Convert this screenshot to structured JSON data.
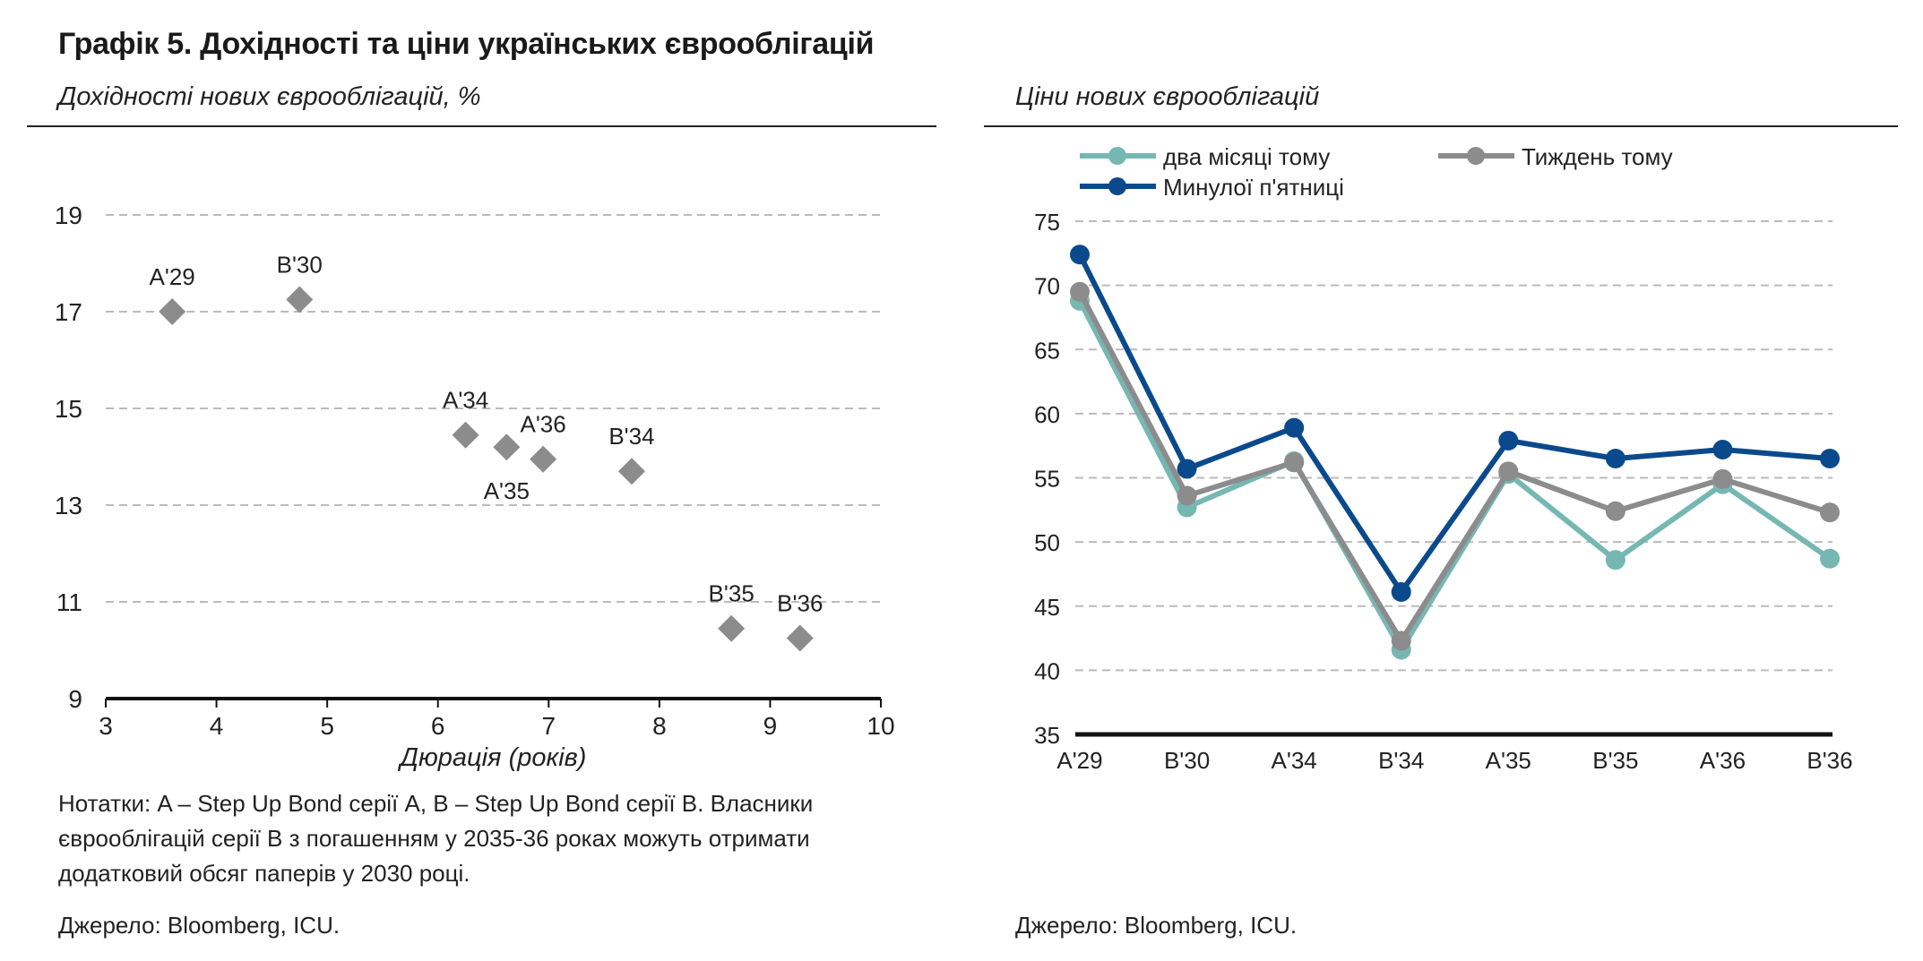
{
  "title": "Графік 5. Дохідності та ціни українських єврооблігацій",
  "left_subtitle": "Дохідності нових єврооблігацій, %",
  "right_subtitle": "Ціни нових єврооблігацій",
  "notes": "Нотатки: A – Step Up Bond серії A, B – Step Up Bond серії B. Власники єврооблігацій серії B з погашенням у 2035-36 роках можуть отримати додатковий обсяг паперів у 2030 році.",
  "left_source": "Джерело: Bloomberg, ICU.",
  "right_source": "Джерело: Bloomberg, ICU.",
  "chart_data": [
    {
      "type": "scatter",
      "title": "Дохідності нових єврооблігацій, %",
      "xlabel": "Дюрація (років)",
      "ylabel": "",
      "xlim": [
        3,
        10
      ],
      "ylim": [
        9,
        19
      ],
      "xticks": [
        3,
        4,
        5,
        6,
        7,
        8,
        9,
        10
      ],
      "yticks": [
        9,
        11,
        13,
        15,
        17,
        19
      ],
      "grid": true,
      "color": "#8c8c8c",
      "points": [
        {
          "label": "A'29",
          "x": 3.6,
          "y": 17.0,
          "label_pos": "above"
        },
        {
          "label": "B'30",
          "x": 4.75,
          "y": 17.25,
          "label_pos": "above"
        },
        {
          "label": "A'34",
          "x": 6.25,
          "y": 14.45,
          "label_pos": "above"
        },
        {
          "label": "A'35",
          "x": 6.62,
          "y": 14.2,
          "label_pos": "below"
        },
        {
          "label": "A'36",
          "x": 6.95,
          "y": 13.95,
          "label_pos": "above"
        },
        {
          "label": "B'34",
          "x": 7.75,
          "y": 13.7,
          "label_pos": "above"
        },
        {
          "label": "B'35",
          "x": 8.65,
          "y": 10.45,
          "label_pos": "above"
        },
        {
          "label": "B'36",
          "x": 9.27,
          "y": 10.25,
          "label_pos": "above"
        }
      ]
    },
    {
      "type": "line",
      "title": "Ціни нових єврооблігацій",
      "xlabel": "",
      "ylabel": "",
      "categories": [
        "A'29",
        "B'30",
        "A'34",
        "B'34",
        "A'35",
        "B'35",
        "A'36",
        "B'36"
      ],
      "ylim": [
        35,
        75
      ],
      "yticks": [
        35,
        40,
        45,
        50,
        55,
        60,
        65,
        70,
        75
      ],
      "grid": true,
      "legend_position": "top",
      "series": [
        {
          "name": "два місяці тому",
          "color": "#76b7b2",
          "values": [
            68.8,
            52.7,
            56.3,
            41.6,
            55.3,
            48.6,
            54.5,
            48.7
          ]
        },
        {
          "name": "Тиждень тому",
          "color": "#8c8c8c",
          "values": [
            69.5,
            53.6,
            56.2,
            42.3,
            55.5,
            52.4,
            54.9,
            52.3
          ]
        },
        {
          "name": "Минулої п'ятниці",
          "color": "#0a4a8c",
          "values": [
            72.4,
            55.7,
            58.9,
            46.1,
            57.9,
            56.5,
            57.2,
            56.5
          ]
        }
      ]
    }
  ]
}
